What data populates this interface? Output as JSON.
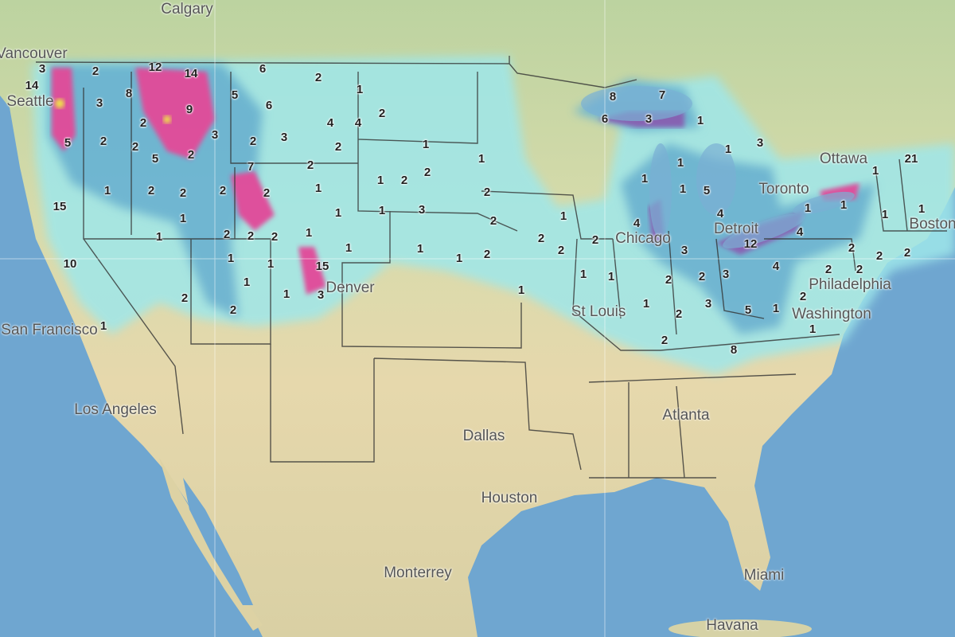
{
  "map": {
    "colors": {
      "ocean": "#6fa6d0",
      "land_north": "#c6d6a6",
      "land_south": "#e4d7ab",
      "snow_light": "#9fe7ea",
      "snow_mid": "#5fb0d8",
      "snow_heavy": "#5a4fa8",
      "snow_extreme": "#e0379a",
      "snow_max": "#f6e53a"
    },
    "cities": [
      "Calgary",
      "Vancouver",
      "Seattle",
      "Ottawa",
      "Toronto",
      "Boston",
      "Chicago",
      "Detroit",
      "Philadelphia",
      "Washington",
      "St Louis",
      "Denver",
      "San Francisco",
      "Los Angeles",
      "Dallas",
      "Atlanta",
      "Houston",
      "Miami",
      "Monterrey",
      "Havana"
    ],
    "snowfall_labels": [
      "3",
      "14",
      "2",
      "12",
      "14",
      "6",
      "2",
      "1",
      "3",
      "8",
      "5",
      "6",
      "2",
      "9",
      "4",
      "4",
      "2",
      "5",
      "2",
      "2",
      "3",
      "2",
      "3",
      "2",
      "1",
      "5",
      "2",
      "7",
      "2",
      "1",
      "1",
      "2",
      "2",
      "2",
      "2",
      "1",
      "1",
      "2",
      "2",
      "2",
      "15",
      "1",
      "1",
      "1",
      "3",
      "2",
      "1",
      "1",
      "2",
      "2",
      "2",
      "1",
      "1",
      "2",
      "2",
      "4",
      "10",
      "1",
      "1",
      "15",
      "1",
      "1",
      "2",
      "2",
      "3",
      "12",
      "4",
      "2",
      "2",
      "2",
      "1",
      "1",
      "3",
      "1",
      "1",
      "2",
      "2",
      "3",
      "4",
      "2",
      "2",
      "2",
      "2",
      "1",
      "1",
      "2",
      "3",
      "5",
      "1",
      "1",
      "2",
      "1",
      "2",
      "8",
      "8",
      "7",
      "6",
      "3",
      "1",
      "1",
      "3",
      "1",
      "1",
      "1",
      "5",
      "4",
      "1",
      "21",
      "1",
      "1",
      "1",
      "1"
    ]
  }
}
